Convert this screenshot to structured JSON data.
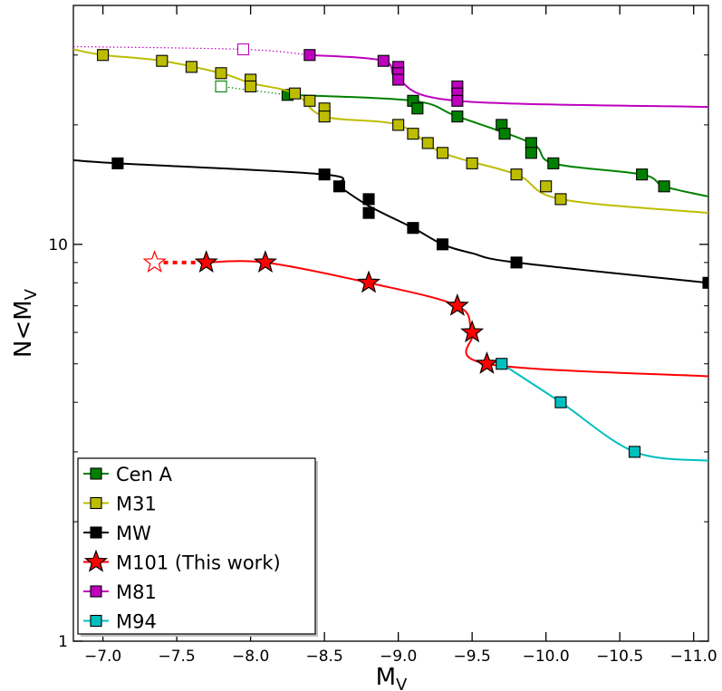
{
  "chart_data": {
    "type": "line",
    "xlabel": "M_V",
    "ylabel": "N<M_V",
    "xlim": [
      -6.8,
      -11.1
    ],
    "ylim": [
      1,
      40
    ],
    "yscale": "log",
    "x_ticks": [
      -7.0,
      -7.5,
      -8.0,
      -8.5,
      -9.0,
      -9.5,
      -10.0,
      -10.5,
      -11.0
    ],
    "x_tick_labels": [
      "−7.0",
      "−7.5",
      "−8.0",
      "−8.5",
      "−9.0",
      "−9.5",
      "−10.0",
      "−10.5",
      "−11.0"
    ],
    "y_ticks": [
      1,
      10
    ],
    "y_tick_labels": [
      "1",
      "10"
    ],
    "legend_position": "lower-left",
    "series": [
      {
        "name": "Cen A",
        "color": "#008000",
        "marker": "square",
        "points": [
          [
            -8.25,
            23.8
          ],
          [
            -9.1,
            23.0
          ],
          [
            -9.13,
            22.0
          ],
          [
            -9.4,
            21.0
          ],
          [
            -9.7,
            20.0
          ],
          [
            -9.72,
            19.0
          ],
          [
            -9.9,
            18.0
          ],
          [
            -9.9,
            17.0
          ],
          [
            -10.05,
            16.0
          ],
          [
            -10.65,
            15.0
          ],
          [
            -10.8,
            14.0
          ]
        ],
        "curve": [
          [
            -8.25,
            23.8
          ],
          [
            -9.1,
            23.0
          ],
          [
            -9.4,
            21.0
          ],
          [
            -9.9,
            18.0
          ],
          [
            -10.05,
            16.0
          ],
          [
            -10.65,
            15.0
          ],
          [
            -10.8,
            14.0
          ],
          [
            -11.1,
            13.2
          ]
        ],
        "extension": [
          [
            -7.8,
            25.0
          ],
          [
            -8.25,
            23.8
          ]
        ],
        "open_points": [
          [
            -7.8,
            25.0
          ]
        ]
      },
      {
        "name": "M31",
        "color": "#bdbd00",
        "marker": "square",
        "points": [
          [
            -7.0,
            30.0
          ],
          [
            -7.4,
            29.0
          ],
          [
            -7.6,
            28.0
          ],
          [
            -7.8,
            27.0
          ],
          [
            -8.0,
            26.0
          ],
          [
            -8.0,
            25.0
          ],
          [
            -8.3,
            24.0
          ],
          [
            -8.4,
            23.0
          ],
          [
            -8.5,
            22.0
          ],
          [
            -8.5,
            21.0
          ],
          [
            -9.0,
            20.0
          ],
          [
            -9.1,
            19.0
          ],
          [
            -9.2,
            18.0
          ],
          [
            -9.3,
            17.0
          ],
          [
            -9.5,
            16.0
          ],
          [
            -9.8,
            15.0
          ],
          [
            -10.0,
            14.0
          ],
          [
            -10.1,
            13.0
          ]
        ],
        "curve": [
          [
            -6.8,
            31.0
          ],
          [
            -7.0,
            30.0
          ],
          [
            -7.4,
            29.0
          ],
          [
            -7.8,
            27.0
          ],
          [
            -8.0,
            25.5
          ],
          [
            -8.3,
            24.0
          ],
          [
            -8.5,
            21.0
          ],
          [
            -9.0,
            20.0
          ],
          [
            -9.3,
            17.0
          ],
          [
            -9.8,
            15.0
          ],
          [
            -10.1,
            13.0
          ],
          [
            -11.1,
            12.0
          ]
        ]
      },
      {
        "name": "MW",
        "color": "#000000",
        "marker": "square",
        "points": [
          [
            -7.1,
            16.0
          ],
          [
            -8.5,
            15.0
          ],
          [
            -8.6,
            14.0
          ],
          [
            -8.8,
            13.0
          ],
          [
            -8.8,
            12.0
          ],
          [
            -9.1,
            11.0
          ],
          [
            -9.3,
            10.0
          ],
          [
            -9.8,
            9.0
          ],
          [
            -11.1,
            8.0
          ]
        ],
        "curve": [
          [
            -6.8,
            16.3
          ],
          [
            -7.1,
            16.0
          ],
          [
            -8.5,
            15.0
          ],
          [
            -8.6,
            14.0
          ],
          [
            -8.8,
            12.5
          ],
          [
            -9.1,
            11.0
          ],
          [
            -9.3,
            10.0
          ],
          [
            -9.5,
            9.5
          ],
          [
            -9.8,
            9.0
          ],
          [
            -11.1,
            8.0
          ]
        ]
      },
      {
        "name": "M101 (This work)",
        "color": "#ff0000",
        "marker": "star",
        "points": [
          [
            -7.7,
            9.0
          ],
          [
            -8.1,
            9.0
          ],
          [
            -8.8,
            8.0
          ],
          [
            -9.4,
            7.0
          ],
          [
            -9.5,
            6.0
          ],
          [
            -9.6,
            5.0
          ]
        ],
        "curve": [
          [
            -7.7,
            9.0
          ],
          [
            -8.1,
            9.0
          ],
          [
            -8.8,
            8.0
          ],
          [
            -9.4,
            7.0
          ],
          [
            -9.5,
            6.0
          ],
          [
            -9.6,
            5.0
          ],
          [
            -11.1,
            4.65
          ]
        ],
        "extension": [
          [
            -7.35,
            9.0
          ],
          [
            -7.7,
            9.0
          ]
        ],
        "open_points": [
          [
            -7.35,
            9.0
          ]
        ]
      },
      {
        "name": "M81",
        "color": "#bf00bf",
        "marker": "square",
        "points": [
          [
            -8.4,
            30.0
          ],
          [
            -8.9,
            29.0
          ],
          [
            -9.0,
            28.0
          ],
          [
            -9.0,
            27.0
          ],
          [
            -9.0,
            26.0
          ],
          [
            -9.4,
            25.0
          ],
          [
            -9.4,
            24.0
          ],
          [
            -9.4,
            23.0
          ]
        ],
        "curve": [
          [
            -8.4,
            30.0
          ],
          [
            -8.9,
            29.0
          ],
          [
            -9.0,
            26.0
          ],
          [
            -9.4,
            23.0
          ],
          [
            -11.1,
            22.2
          ]
        ],
        "extension": [
          [
            -6.8,
            31.5
          ],
          [
            -7.95,
            31.0
          ],
          [
            -8.4,
            30.0
          ]
        ],
        "open_points": [
          [
            -7.95,
            31.0
          ]
        ]
      },
      {
        "name": "M94",
        "color": "#00bfbf",
        "marker": "square",
        "points": [
          [
            -9.7,
            5.0
          ],
          [
            -10.1,
            4.0
          ],
          [
            -10.6,
            3.0
          ]
        ],
        "curve": [
          [
            -9.7,
            5.0
          ],
          [
            -10.1,
            4.0
          ],
          [
            -10.6,
            3.0
          ],
          [
            -11.1,
            2.85
          ]
        ]
      }
    ]
  }
}
